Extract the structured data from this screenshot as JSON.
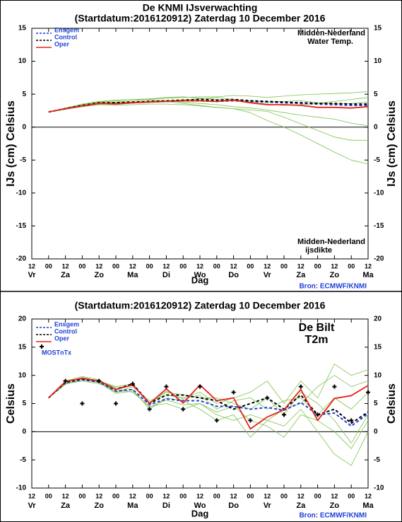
{
  "chart_data": [
    {
      "type": "line",
      "title": "De KNMI IJsverwachting",
      "subtitle": "(Startdatum:2016120912)  Zaterdag 10 December 2016",
      "categories": [
        "12",
        "00",
        "12",
        "00",
        "12",
        "00",
        "12",
        "00",
        "12",
        "00",
        "12",
        "00",
        "12",
        "00",
        "12",
        "00",
        "12",
        "00",
        "12",
        "00",
        "12"
      ],
      "day_labels": [
        "Vr",
        null,
        "Za",
        null,
        "Zo",
        null,
        "Ma",
        null,
        "Di",
        null,
        "Wo",
        null,
        "Do",
        null,
        "Vr",
        null,
        "Za",
        null,
        "Zo",
        null,
        "Ma"
      ],
      "xlabel": "Dag",
      "ylabel": "IJs (cm)  Celsius",
      "ylim": [
        -20,
        15
      ],
      "yticks": [
        -20,
        -15,
        -10,
        -5,
        0,
        5,
        10,
        15
      ],
      "zero_line": true,
      "legend": "upper left",
      "annotations": [
        "Midden-Nederland",
        "Water Temp.",
        "Midden-Nederland",
        "ijsdikte"
      ],
      "source": "Bron: ECMWF/KNMI",
      "members_color": "#7cc24e",
      "members": [
        [
          null,
          2.3,
          2.8,
          3.3,
          3.7,
          3.8,
          4.0,
          4.2,
          4.4,
          4.5,
          4.6,
          4.6,
          4.8,
          4.7,
          4.5,
          4.7,
          4.9,
          5.0,
          5.1,
          5.2,
          5.4
        ],
        [
          null,
          2.3,
          2.7,
          3.1,
          3.4,
          3.3,
          3.4,
          3.5,
          3.5,
          3.4,
          3.2,
          3.0,
          2.8,
          2.6,
          2.4,
          1.5,
          0.5,
          -0.5,
          -1.5,
          -2.0,
          -2.0
        ],
        [
          null,
          2.3,
          2.8,
          3.2,
          3.5,
          3.6,
          3.7,
          3.8,
          3.9,
          3.6,
          3.3,
          3.0,
          2.8,
          2.2,
          1.0,
          0.0,
          -1.2,
          -2.5,
          -3.8,
          -5.0,
          -5.6
        ],
        [
          null,
          2.3,
          2.9,
          3.5,
          3.9,
          4.1,
          4.2,
          4.3,
          4.5,
          4.6,
          4.4,
          4.2,
          4.0,
          3.8,
          3.5,
          3.3,
          3.4,
          3.6,
          3.9,
          4.2,
          4.5
        ],
        [
          null,
          2.3,
          2.8,
          3.3,
          3.6,
          3.7,
          3.8,
          3.9,
          4.0,
          3.8,
          3.6,
          3.4,
          3.1,
          2.9,
          2.6,
          2.2,
          1.8,
          1.5,
          1.2,
          0.6,
          0.2
        ],
        [
          null,
          2.3,
          2.8,
          3.4,
          3.8,
          4.0,
          4.2,
          4.1,
          4.0,
          4.1,
          4.3,
          4.5,
          4.2,
          4.0,
          3.8,
          3.9,
          4.0,
          3.7,
          3.5,
          3.6,
          3.8
        ]
      ],
      "series": [
        {
          "name": "Ensgem",
          "color": "#1f3fd6",
          "style": "dashed",
          "values": [
            null,
            2.3,
            2.8,
            3.2,
            3.6,
            3.6,
            3.7,
            3.8,
            3.9,
            4.0,
            4.0,
            3.9,
            4.0,
            3.9,
            3.8,
            3.7,
            3.6,
            3.5,
            3.4,
            3.3,
            3.3
          ]
        },
        {
          "name": "Control",
          "color": "#000000",
          "style": "dashed",
          "values": [
            null,
            2.3,
            2.8,
            3.3,
            3.7,
            3.7,
            3.8,
            3.9,
            4.0,
            4.1,
            4.2,
            4.1,
            4.2,
            4.0,
            3.9,
            3.8,
            3.7,
            3.6,
            3.6,
            3.5,
            3.5
          ]
        },
        {
          "name": "Oper",
          "color": "#e8231b",
          "style": "solid",
          "values": [
            null,
            2.3,
            2.8,
            3.2,
            3.6,
            3.5,
            3.7,
            3.8,
            3.9,
            4.0,
            4.0,
            3.9,
            4.1,
            3.7,
            3.4,
            3.4,
            3.3,
            3.0,
            3.0,
            2.9,
            3.1
          ]
        }
      ]
    },
    {
      "type": "line",
      "title": "(Startdatum:2016120912)  Zaterdag 10 December 2016",
      "categories": [
        "12",
        "00",
        "12",
        "00",
        "12",
        "00",
        "12",
        "00",
        "12",
        "00",
        "12",
        "00",
        "12",
        "00",
        "12",
        "00",
        "12",
        "00",
        "12",
        "00",
        "12"
      ],
      "day_labels": [
        "Vr",
        null,
        "Za",
        null,
        "Zo",
        null,
        "Ma",
        null,
        "Di",
        null,
        "Wo",
        null,
        "Do",
        null,
        "Vr",
        null,
        "Za",
        null,
        "Zo",
        null,
        "Ma"
      ],
      "xlabel": "Dag",
      "ylabel": "Celsius",
      "ylim": [
        -10,
        20
      ],
      "yticks": [
        -10,
        -5,
        0,
        5,
        10,
        15,
        20
      ],
      "zero_line": true,
      "legend": "upper left",
      "annotations": [
        "De Bilt",
        "T2m"
      ],
      "source": "Bron: ECMWF/KNMI",
      "members_color": "#7cc24e",
      "members": [
        [
          null,
          6,
          9,
          9.8,
          9.2,
          7,
          8,
          5.5,
          6.5,
          6,
          7,
          5,
          6,
          7,
          9,
          5,
          9,
          6,
          12,
          10,
          11
        ],
        [
          null,
          6,
          8.5,
          9,
          8.5,
          7.5,
          7,
          4.5,
          5,
          4,
          5,
          3,
          2,
          3,
          2,
          1,
          4,
          0,
          -4,
          -6,
          0
        ],
        [
          null,
          6,
          8.8,
          9.6,
          9,
          8,
          8.5,
          5,
          7,
          6.5,
          6,
          6,
          5,
          4,
          6,
          3,
          7,
          5,
          2,
          -2,
          3
        ],
        [
          null,
          6,
          8.6,
          9.3,
          8.8,
          7,
          7.5,
          4,
          6,
          5.5,
          4,
          2,
          3,
          -1,
          2,
          4,
          5,
          8,
          10,
          8,
          9
        ],
        [
          null,
          6,
          8.9,
          9.5,
          9.1,
          7.8,
          8.2,
          5.2,
          7.2,
          5.8,
          6.5,
          4,
          5.5,
          6,
          4,
          5.5,
          6,
          3,
          6,
          4,
          7
        ],
        [
          null,
          6,
          8.4,
          9.2,
          8.7,
          6.8,
          7.2,
          4.4,
          5.6,
          4.8,
          5,
          3.5,
          4.5,
          2,
          1,
          -1,
          3,
          2,
          0,
          -3,
          2
        ]
      ],
      "series": [
        {
          "name": "Ensgem",
          "color": "#1f3fd6",
          "style": "dashed",
          "values": [
            null,
            6,
            8.7,
            9.2,
            8.8,
            7.2,
            7.5,
            4.8,
            5.8,
            5.5,
            5.5,
            4.5,
            4.5,
            4,
            4.3,
            3.8,
            5.2,
            3,
            3.3,
            1,
            3.2
          ]
        },
        {
          "name": "Control",
          "color": "#000000",
          "style": "dashed",
          "values": [
            null,
            6,
            8.8,
            9.4,
            9,
            7.5,
            8.5,
            5,
            6.5,
            6.5,
            6,
            5.5,
            4,
            5,
            6,
            4,
            6.5,
            3,
            4,
            1.5,
            3.5
          ]
        },
        {
          "name": "Oper",
          "color": "#e8231b",
          "style": "solid",
          "values": [
            null,
            6,
            8.9,
            9.5,
            9,
            7.5,
            8.3,
            5,
            7.6,
            5.1,
            8.3,
            5.5,
            6,
            0.5,
            2.6,
            3.9,
            7.5,
            2,
            5.9,
            6.4,
            8.2
          ]
        },
        {
          "name": "MOSTnTx",
          "color": "#000000",
          "style": "markers",
          "values": [
            null,
            null,
            9,
            5,
            9,
            5,
            8.5,
            4,
            8,
            4,
            8,
            2,
            7,
            2,
            6,
            3,
            8,
            3,
            8,
            2,
            7
          ]
        }
      ]
    }
  ]
}
